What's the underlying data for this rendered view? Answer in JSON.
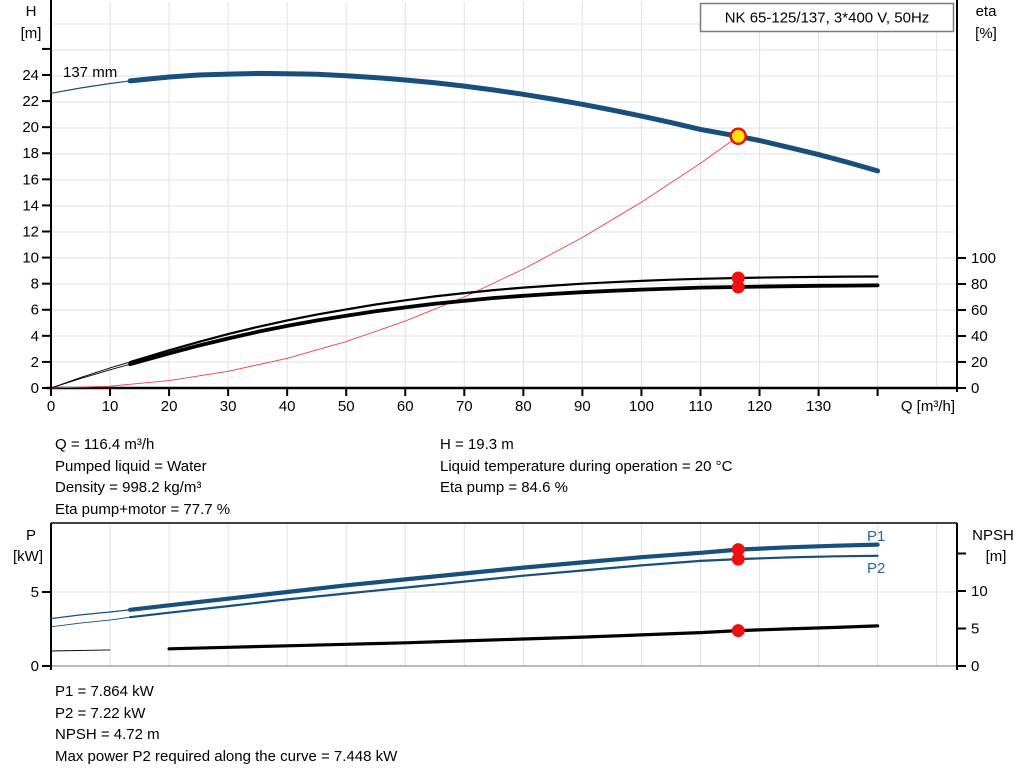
{
  "title_box": "NK 65-125/137, 3*400 V, 50Hz",
  "colors": {
    "curve_blue": "#174f7d",
    "label_blue": "#2a64a0",
    "marker_red": "#ee1111",
    "duty_yellow": "#ffe60a",
    "system_red": "#ef4040",
    "grid": "#e2e2e2",
    "axis": "#000000",
    "box_border": "#7a7a7a",
    "bottom_border": "#909090"
  },
  "info_top_left": [
    "Q = 116.4 m³/h",
    "Pumped liquid = Water",
    "Density = 998.2 kg/m³",
    "Eta pump+motor = 77.7 %"
  ],
  "info_top_right": [
    "H = 19.3 m",
    "Liquid temperature during operation = 20 °C",
    "Eta pump = 84.6 %"
  ],
  "info_bottom": [
    "P1 = 7.864 kW",
    "P2 = 7.22 kW",
    "NPSH = 4.72 m",
    "Max power P2 required along the curve = 7.448 kW"
  ],
  "chart_data": [
    {
      "id": "head-efficiency-chart",
      "type": "line",
      "title": "NK 65-125/137, 3*400 V, 50Hz",
      "curve_label": "137 mm",
      "x_axis": {
        "label": "Q [m³/h]",
        "min": 0,
        "max": 153.4,
        "ticks_labeled": [
          0,
          10,
          20,
          30,
          40,
          50,
          60,
          70,
          80,
          90,
          100,
          110,
          120,
          130
        ],
        "ticks_unlabeled": [
          140
        ],
        "grid_step": 10
      },
      "y_left": {
        "label_line1": "H",
        "label_line2": "[m]",
        "min": 0,
        "max": 29.7,
        "ticks_labeled": [
          0,
          2,
          4,
          6,
          8,
          10,
          12,
          14,
          16,
          18,
          20,
          22,
          24
        ],
        "ticks_unlabeled": [
          26
        ]
      },
      "y_right": {
        "label_line1": "eta",
        "label_line2": "[%]",
        "min": 0,
        "max": 100,
        "ticks_labeled": [
          0,
          20,
          40,
          60,
          80,
          100
        ],
        "ticks_unlabeled": []
      },
      "series": [
        {
          "name": "system-curve",
          "axis": "left",
          "color_key": "system_red",
          "thin_width": 0.9,
          "thick_from": null,
          "points": [
            [
              0,
              0
            ],
            [
              10,
              0.14
            ],
            [
              20,
              0.57
            ],
            [
              30,
              1.28
            ],
            [
              40,
              2.28
            ],
            [
              50,
              3.56
            ],
            [
              60,
              5.13
            ],
            [
              70,
              6.98
            ],
            [
              80,
              9.12
            ],
            [
              90,
              11.54
            ],
            [
              100,
              14.25
            ],
            [
              110,
              17.24
            ],
            [
              116.4,
              19.3
            ]
          ]
        },
        {
          "name": "eta-pump",
          "axis": "right",
          "color_key": "axis",
          "thin_width": 0.9,
          "thick_width": 2.2,
          "thick_from": 13.4,
          "points": [
            [
              0,
              0
            ],
            [
              5,
              8
            ],
            [
              10,
              15.5
            ],
            [
              13.4,
              20
            ],
            [
              20,
              29
            ],
            [
              25,
              35.5
            ],
            [
              30,
              41.5
            ],
            [
              35,
              47
            ],
            [
              40,
              52
            ],
            [
              45,
              56.5
            ],
            [
              50,
              60.5
            ],
            [
              55,
              64.2
            ],
            [
              60,
              67.5
            ],
            [
              65,
              70.5
            ],
            [
              70,
              73
            ],
            [
              75,
              75.3
            ],
            [
              80,
              77.2
            ],
            [
              85,
              78.8
            ],
            [
              90,
              80.2
            ],
            [
              95,
              81.4
            ],
            [
              100,
              82.4
            ],
            [
              105,
              83.3
            ],
            [
              110,
              84
            ],
            [
              116.4,
              84.6
            ],
            [
              120,
              84.9
            ],
            [
              125,
              85.2
            ],
            [
              130,
              85.5
            ],
            [
              135,
              85.7
            ],
            [
              140,
              85.8
            ]
          ]
        },
        {
          "name": "eta-pump-motor",
          "axis": "right",
          "color_key": "axis",
          "thin_width": 0.9,
          "thick_width": 3.8,
          "thick_from": 13.4,
          "points": [
            [
              0,
              0
            ],
            [
              5,
              7.2
            ],
            [
              10,
              14
            ],
            [
              13.4,
              18.3
            ],
            [
              20,
              26.6
            ],
            [
              25,
              32.6
            ],
            [
              30,
              38.1
            ],
            [
              35,
              43.2
            ],
            [
              40,
              47.8
            ],
            [
              45,
              51.9
            ],
            [
              50,
              55.6
            ],
            [
              55,
              59
            ],
            [
              60,
              62
            ],
            [
              65,
              64.8
            ],
            [
              70,
              67.1
            ],
            [
              75,
              69.2
            ],
            [
              80,
              70.9
            ],
            [
              85,
              72.4
            ],
            [
              90,
              73.7
            ],
            [
              95,
              74.8
            ],
            [
              100,
              75.7
            ],
            [
              105,
              76.5
            ],
            [
              110,
              77.2
            ],
            [
              116.4,
              77.7
            ],
            [
              120,
              78
            ],
            [
              125,
              78.3
            ],
            [
              130,
              78.6
            ],
            [
              135,
              78.8
            ],
            [
              140,
              79
            ]
          ]
        },
        {
          "name": "pump-head-137mm",
          "axis": "left",
          "color_key": "curve_blue",
          "thin_width": 1.2,
          "thick_width": 5,
          "thick_from": 13.4,
          "points": [
            [
              0,
              22.6
            ],
            [
              5,
              23.0
            ],
            [
              10,
              23.35
            ],
            [
              13.4,
              23.55
            ],
            [
              20,
              23.85
            ],
            [
              25,
              24.0
            ],
            [
              30,
              24.07
            ],
            [
              35,
              24.12
            ],
            [
              40,
              24.1
            ],
            [
              45,
              24.05
            ],
            [
              50,
              23.95
            ],
            [
              55,
              23.8
            ],
            [
              60,
              23.62
            ],
            [
              65,
              23.4
            ],
            [
              70,
              23.15
            ],
            [
              75,
              22.85
            ],
            [
              80,
              22.52
            ],
            [
              85,
              22.15
            ],
            [
              90,
              21.75
            ],
            [
              95,
              21.32
            ],
            [
              100,
              20.85
            ],
            [
              105,
              20.35
            ],
            [
              110,
              19.83
            ],
            [
              116.4,
              19.3
            ],
            [
              120,
              18.98
            ],
            [
              125,
              18.45
            ],
            [
              130,
              17.9
            ],
            [
              135,
              17.3
            ],
            [
              140,
              16.65
            ]
          ]
        }
      ],
      "duty_point": {
        "q": 116.4,
        "value": 19.3,
        "axis": "left"
      },
      "markers": [
        {
          "q": 116.4,
          "value": 84.6,
          "axis": "right"
        },
        {
          "q": 116.4,
          "value": 77.7,
          "axis": "right"
        }
      ]
    },
    {
      "id": "power-npsh-chart",
      "type": "line",
      "x_axis": {
        "label": "",
        "min": 0,
        "max": 153.4,
        "ticks_labeled": [],
        "ticks_unlabeled": [],
        "grid_step": 10
      },
      "y_left": {
        "label_line1": "P",
        "label_line2": "[kW]",
        "min": 0,
        "max": 9.66,
        "ticks_labeled": [
          0,
          5
        ],
        "ticks_unlabeled": []
      },
      "y_right": {
        "label_line1": "NPSH",
        "label_line2": "[m]",
        "min": 0,
        "max": 19.1,
        "ticks_labeled": [
          0,
          5,
          10
        ],
        "ticks_unlabeled": [
          15
        ]
      },
      "series": [
        {
          "name": "power-p1",
          "axis": "left",
          "color_key": "curve_blue",
          "thin_width": 1.2,
          "thick_width": 4.2,
          "thick_from": 13.4,
          "points": [
            [
              0,
              3.2
            ],
            [
              5,
              3.45
            ],
            [
              10,
              3.65
            ],
            [
              13.4,
              3.8
            ],
            [
              20,
              4.1
            ],
            [
              30,
              4.55
            ],
            [
              40,
              5.0
            ],
            [
              50,
              5.45
            ],
            [
              60,
              5.85
            ],
            [
              70,
              6.25
            ],
            [
              80,
              6.65
            ],
            [
              90,
              7.0
            ],
            [
              100,
              7.35
            ],
            [
              110,
              7.65
            ],
            [
              116.4,
              7.864
            ],
            [
              125,
              8.02
            ],
            [
              133,
              8.13
            ],
            [
              140,
              8.2
            ]
          ]
        },
        {
          "name": "power-p2",
          "axis": "left",
          "color_key": "curve_blue",
          "thin_width": 0.9,
          "thick_width": 2.2,
          "thick_from": 13.4,
          "points": [
            [
              0,
              2.65
            ],
            [
              5,
              2.9
            ],
            [
              10,
              3.1
            ],
            [
              13.4,
              3.3
            ],
            [
              20,
              3.6
            ],
            [
              30,
              4.05
            ],
            [
              40,
              4.5
            ],
            [
              50,
              4.9
            ],
            [
              60,
              5.3
            ],
            [
              70,
              5.7
            ],
            [
              80,
              6.1
            ],
            [
              90,
              6.45
            ],
            [
              100,
              6.8
            ],
            [
              110,
              7.1
            ],
            [
              116.4,
              7.22
            ],
            [
              125,
              7.34
            ],
            [
              133,
              7.41
            ],
            [
              140,
              7.448
            ]
          ]
        },
        {
          "name": "npsh",
          "axis": "right",
          "color_key": "axis",
          "thin_width": 0.9,
          "thick_width": 3.2,
          "thick_from": 13.4,
          "points": [
            [
              0,
              2.0
            ],
            [
              10,
              2.15
            ],
            [
              20,
              2.3
            ],
            [
              30,
              2.5
            ],
            [
              40,
              2.7
            ],
            [
              50,
              2.9
            ],
            [
              60,
              3.1
            ],
            [
              70,
              3.35
            ],
            [
              80,
              3.6
            ],
            [
              90,
              3.85
            ],
            [
              100,
              4.15
            ],
            [
              110,
              4.45
            ],
            [
              116.4,
              4.72
            ],
            [
              125,
              4.95
            ],
            [
              133,
              5.15
            ],
            [
              140,
              5.35
            ]
          ]
        }
      ],
      "series_labels": {
        "p1": "P1",
        "p2": "P2"
      },
      "markers": [
        {
          "q": 116.4,
          "value": 7.864,
          "axis": "left"
        },
        {
          "q": 116.4,
          "value": 7.22,
          "axis": "left"
        },
        {
          "q": 116.4,
          "value": 4.72,
          "axis": "right"
        }
      ]
    }
  ]
}
